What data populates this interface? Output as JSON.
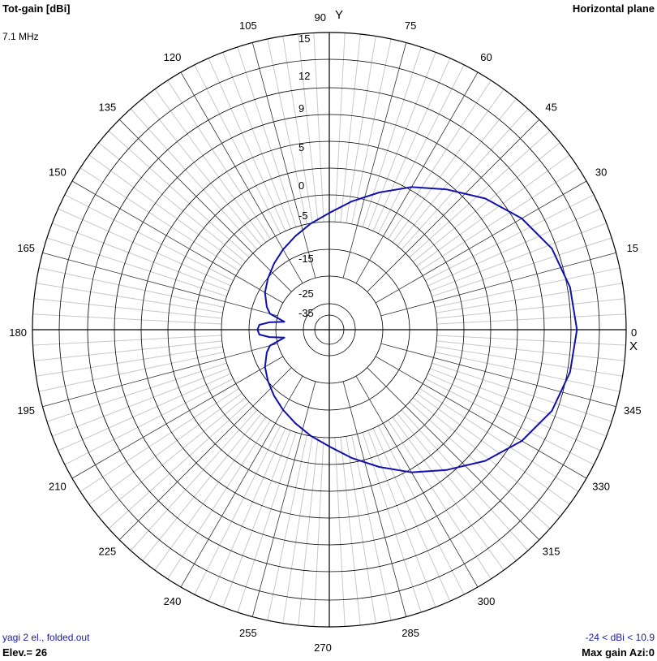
{
  "header": {
    "title": "Tot-gain [dBi]",
    "frequency": "7.1 MHz",
    "plane": "Horizontal plane",
    "y_axis_label": "Y",
    "x_axis_label": "X"
  },
  "footer": {
    "file": "yagi 2 el., folded.out",
    "elevation": "Elev.= 26",
    "range": "-24 < dBi < 10.9",
    "max_gain": "Max gain Azi:0"
  },
  "colors": {
    "trace": "#1010b0",
    "major_grid": "#000000",
    "minor_grid": "#c8c8c8",
    "label_blue": "#1a1aa8"
  },
  "chart_data": {
    "type": "polar-line",
    "title": "Tot-gain [dBi]",
    "subtitle": "Horizontal plane",
    "angle_unit": "deg",
    "angle_labels": [
      "0",
      "15",
      "30",
      "45",
      "60",
      "75",
      "90",
      "105",
      "120",
      "135",
      "150",
      "165",
      "180",
      "195",
      "210",
      "225",
      "240",
      "255",
      "270",
      "285",
      "300",
      "315",
      "330",
      "345"
    ],
    "radial_labels": [
      "15",
      "12",
      "9",
      "5",
      "0",
      "-5",
      "-15",
      "-25",
      "-35"
    ],
    "series": [
      {
        "points": [
          {
            "azi": 0,
            "dbi": 10.9
          },
          {
            "azi": 10,
            "dbi": 10.6
          },
          {
            "azi": 20,
            "dbi": 9.9
          },
          {
            "azi": 30,
            "dbi": 8.5
          },
          {
            "azi": 40,
            "dbi": 6.6
          },
          {
            "azi": 50,
            "dbi": 4.3
          },
          {
            "azi": 60,
            "dbi": 1.9
          },
          {
            "azi": 70,
            "dbi": -0.7
          },
          {
            "azi": 80,
            "dbi": -3.3
          },
          {
            "azi": 90,
            "dbi": -5.8
          },
          {
            "azi": 100,
            "dbi": -7.9
          },
          {
            "azi": 110,
            "dbi": -9.8
          },
          {
            "azi": 120,
            "dbi": -11.4
          },
          {
            "azi": 130,
            "dbi": -12.9
          },
          {
            "azi": 140,
            "dbi": -14.3
          },
          {
            "azi": 150,
            "dbi": -15.8
          },
          {
            "azi": 160,
            "dbi": -18.0
          },
          {
            "azi": 165,
            "dbi": -19.5
          },
          {
            "azi": 170,
            "dbi": -24.0
          },
          {
            "azi": 173,
            "dbi": -19.8
          },
          {
            "azi": 176,
            "dbi": -17.0
          },
          {
            "azi": 180,
            "dbi": -16.5
          },
          {
            "azi": 184,
            "dbi": -17.0
          },
          {
            "azi": 187,
            "dbi": -19.8
          },
          {
            "azi": 190,
            "dbi": -24.0
          },
          {
            "azi": 195,
            "dbi": -19.5
          },
          {
            "azi": 200,
            "dbi": -18.0
          },
          {
            "azi": 210,
            "dbi": -15.8
          },
          {
            "azi": 220,
            "dbi": -14.3
          },
          {
            "azi": 230,
            "dbi": -12.9
          },
          {
            "azi": 240,
            "dbi": -11.4
          },
          {
            "azi": 250,
            "dbi": -9.8
          },
          {
            "azi": 260,
            "dbi": -7.9
          },
          {
            "azi": 270,
            "dbi": -5.8
          },
          {
            "azi": 280,
            "dbi": -3.3
          },
          {
            "azi": 290,
            "dbi": -0.7
          },
          {
            "azi": 300,
            "dbi": 1.9
          },
          {
            "azi": 310,
            "dbi": 4.3
          },
          {
            "azi": 320,
            "dbi": 6.6
          },
          {
            "azi": 330,
            "dbi": 8.5
          },
          {
            "azi": 340,
            "dbi": 9.9
          },
          {
            "azi": 350,
            "dbi": 10.6
          },
          {
            "azi": 360,
            "dbi": 10.9
          }
        ]
      }
    ],
    "max_gain_dbi": 10.9,
    "min_gain_dbi": -24,
    "max_gain_azimuth": 0,
    "elevation": 26,
    "grid": true
  }
}
